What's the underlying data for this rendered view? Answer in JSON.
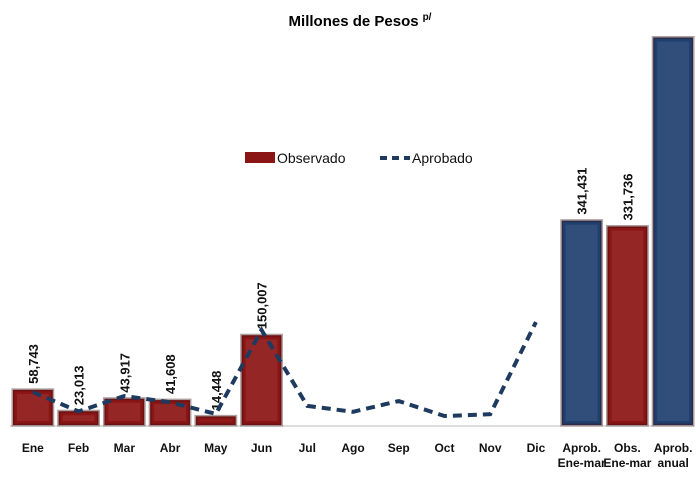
{
  "chart_data": {
    "type": "bar",
    "title": "Millones de Pesos",
    "title_note": "p/",
    "categories": [
      "Ene",
      "Feb",
      "Mar",
      "Abr",
      "May",
      "Jun",
      "Jul",
      "Ago",
      "Sep",
      "Oct",
      "Nov",
      "Dic",
      "Aprob.\nEne-mar",
      "Obs.\nEne-mar",
      "Aprob.\nanual"
    ],
    "ylim": [
      0,
      650000
    ],
    "legend": "top",
    "series": [
      {
        "name": "Observado",
        "type": "bar",
        "color": "#8b1414",
        "values": [
          58743,
          23013,
          43917,
          41608,
          14448,
          150007,
          null,
          null,
          null,
          null,
          null,
          null,
          null,
          331736,
          null
        ],
        "value_labels": [
          "58,743",
          "23,013",
          "43,917",
          "41,608",
          "14,448",
          "150,007",
          null,
          null,
          null,
          null,
          null,
          null,
          null,
          "331,736",
          null
        ]
      },
      {
        "name": "Aprobado",
        "type": "line",
        "color": "#1f3a5f",
        "dashed": true,
        "values": [
          55000,
          22700,
          48400,
          38100,
          18500,
          158700,
          32000,
          22000,
          40000,
          15000,
          18000,
          172000,
          null,
          null,
          null
        ]
      },
      {
        "type": "bar",
        "color": "#1f3f6e",
        "values": [
          null,
          null,
          null,
          null,
          null,
          null,
          null,
          null,
          null,
          null,
          null,
          null,
          341431,
          null,
          647480
        ],
        "value_labels": [
          null,
          null,
          null,
          null,
          null,
          null,
          null,
          null,
          null,
          null,
          null,
          null,
          "341,431",
          null,
          "647,480"
        ]
      }
    ]
  }
}
